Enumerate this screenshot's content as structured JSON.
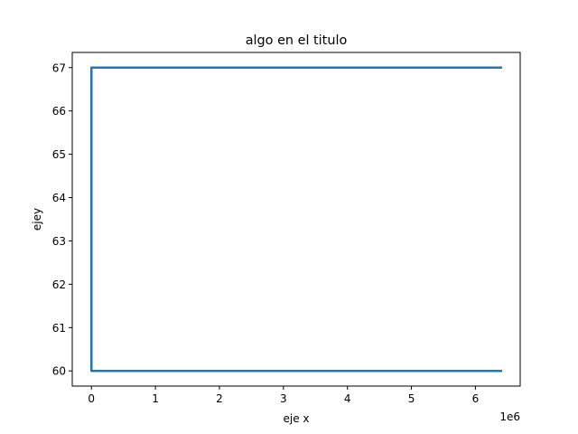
{
  "chart_data": {
    "type": "line",
    "title": "algo en el titulo",
    "xlabel": "eje x",
    "ylabel": "ejey",
    "x_offset_text": "1e6",
    "xlim": [
      -300000,
      6700000
    ],
    "ylim": [
      59.65,
      67.35
    ],
    "x_ticks": [
      0,
      1000000,
      2000000,
      3000000,
      4000000,
      5000000,
      6000000
    ],
    "x_tick_labels": [
      "0",
      "1",
      "2",
      "3",
      "4",
      "5",
      "6"
    ],
    "y_ticks": [
      60,
      61,
      62,
      63,
      64,
      65,
      66,
      67
    ],
    "y_tick_labels": [
      "60",
      "61",
      "62",
      "63",
      "64",
      "65",
      "66",
      "67"
    ],
    "grid": false,
    "series": [
      {
        "color": "#1f77b4",
        "points": [
          [
            6400000,
            67
          ],
          [
            0,
            67
          ],
          [
            0,
            60
          ],
          [
            6400000,
            60
          ]
        ]
      }
    ]
  }
}
